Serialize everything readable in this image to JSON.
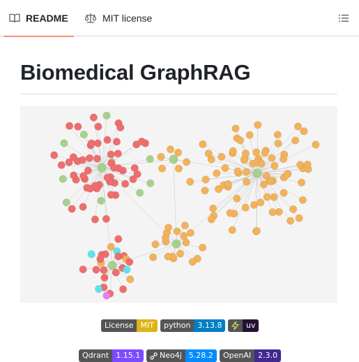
{
  "tabs": {
    "readme": "README",
    "license": "MIT license"
  },
  "page_title": "Biomedical GraphRAG",
  "badges_row1": [
    {
      "label": "License",
      "value": "MIT",
      "color": "#dfb317"
    },
    {
      "label": "python",
      "value": "3.13.8",
      "color": "#007ec6"
    },
    {
      "label": "",
      "value": "uv",
      "color": "#261230",
      "icon": "lightning-icon"
    }
  ],
  "badges_row2": [
    {
      "label": "Qdrant",
      "value": "1.15.1",
      "color": "#7b4bff"
    },
    {
      "label": "Neo4j",
      "value": "5.28.2",
      "color": "#018bff",
      "icon": "neo4j-icon"
    },
    {
      "label": "OpenAI",
      "value": "2.3.0",
      "color": "#412991"
    }
  ],
  "graph": {
    "colors": {
      "paper": "#ee6e6e",
      "gene": "#f2b25c",
      "hub": "#a8d08d",
      "author": "#5ee2f0",
      "misc": "#e87ee8"
    }
  }
}
